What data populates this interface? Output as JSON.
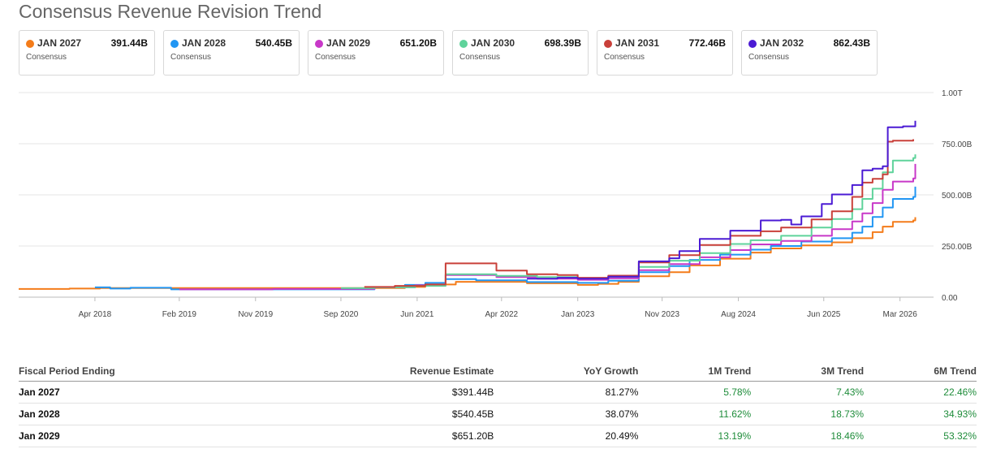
{
  "title": "Consensus Revenue Revision Trend",
  "cards": [
    {
      "name": "JAN 2027",
      "value": "391.44B",
      "sub": "Consensus",
      "color": "#f47c1a"
    },
    {
      "name": "JAN 2028",
      "value": "540.45B",
      "sub": "Consensus",
      "color": "#2196f3"
    },
    {
      "name": "JAN 2029",
      "value": "651.20B",
      "sub": "Consensus",
      "color": "#c838c8"
    },
    {
      "name": "JAN 2030",
      "value": "698.39B",
      "sub": "Consensus",
      "color": "#5fd39b"
    },
    {
      "name": "JAN 2031",
      "value": "772.46B",
      "sub": "Consensus",
      "color": "#c9403a"
    },
    {
      "name": "JAN 2032",
      "value": "862.43B",
      "sub": "Consensus",
      "color": "#4b1bd4"
    }
  ],
  "chart_data": {
    "type": "line",
    "title": "Consensus Revenue Revision Trend",
    "xlabel": "",
    "ylabel": "",
    "x_range": [
      2017.5,
      2026.5
    ],
    "ylim": [
      0,
      1000
    ],
    "y_ticks": [
      {
        "value": 0,
        "label": "0.00"
      },
      {
        "value": 250,
        "label": "250.00B"
      },
      {
        "value": 500,
        "label": "500.00B"
      },
      {
        "value": 750,
        "label": "750.00B"
      },
      {
        "value": 1000,
        "label": "1.00T"
      }
    ],
    "x_ticks": [
      {
        "value": 2018.25,
        "label": "Apr 2018"
      },
      {
        "value": 2019.08,
        "label": "Feb 2019"
      },
      {
        "value": 2019.83,
        "label": "Nov 2019"
      },
      {
        "value": 2020.67,
        "label": "Sep 2020"
      },
      {
        "value": 2021.42,
        "label": "Jun 2021"
      },
      {
        "value": 2022.25,
        "label": "Apr 2022"
      },
      {
        "value": 2023.0,
        "label": "Jan 2023"
      },
      {
        "value": 2023.83,
        "label": "Nov 2023"
      },
      {
        "value": 2024.58,
        "label": "Aug 2024"
      },
      {
        "value": 2025.42,
        "label": "Jun 2025"
      },
      {
        "value": 2026.17,
        "label": "Mar 2026"
      }
    ],
    "grid": true,
    "legend": "top",
    "series": [
      {
        "name": "JAN 2027",
        "color": "#f47c1a",
        "points": [
          [
            2017.5,
            40
          ],
          [
            2018.0,
            42
          ],
          [
            2018.3,
            45
          ],
          [
            2021.3,
            50
          ],
          [
            2021.5,
            62
          ],
          [
            2021.8,
            75
          ],
          [
            2022.5,
            68
          ],
          [
            2023.0,
            60
          ],
          [
            2023.2,
            65
          ],
          [
            2023.4,
            75
          ],
          [
            2023.6,
            102
          ],
          [
            2023.9,
            122
          ],
          [
            2024.1,
            155
          ],
          [
            2024.4,
            188
          ],
          [
            2024.7,
            218
          ],
          [
            2024.9,
            238
          ],
          [
            2025.2,
            253
          ],
          [
            2025.5,
            268
          ],
          [
            2025.7,
            288
          ],
          [
            2025.9,
            318
          ],
          [
            2026.0,
            345
          ],
          [
            2026.1,
            368
          ],
          [
            2026.3,
            375
          ],
          [
            2026.32,
            391
          ]
        ]
      },
      {
        "name": "JAN 2028",
        "color": "#2196f3",
        "points": [
          [
            2018.25,
            48
          ],
          [
            2018.4,
            42
          ],
          [
            2018.6,
            46
          ],
          [
            2019.0,
            38
          ],
          [
            2020.0,
            38
          ],
          [
            2021.0,
            48
          ],
          [
            2021.3,
            60
          ],
          [
            2021.5,
            70
          ],
          [
            2021.7,
            88
          ],
          [
            2022.0,
            82
          ],
          [
            2022.5,
            74
          ],
          [
            2023.0,
            70
          ],
          [
            2023.3,
            80
          ],
          [
            2023.6,
            122
          ],
          [
            2023.9,
            152
          ],
          [
            2024.1,
            182
          ],
          [
            2024.4,
            208
          ],
          [
            2024.7,
            232
          ],
          [
            2024.9,
            250
          ],
          [
            2025.2,
            272
          ],
          [
            2025.5,
            288
          ],
          [
            2025.7,
            315
          ],
          [
            2025.8,
            345
          ],
          [
            2025.9,
            392
          ],
          [
            2026.0,
            438
          ],
          [
            2026.1,
            480
          ],
          [
            2026.3,
            490
          ],
          [
            2026.32,
            540
          ]
        ]
      },
      {
        "name": "JAN 2029",
        "color": "#c838c8",
        "points": [
          [
            2019.08,
            38
          ],
          [
            2020.0,
            40
          ],
          [
            2021.0,
            48
          ],
          [
            2021.4,
            58
          ],
          [
            2021.7,
            108
          ],
          [
            2022.2,
            98
          ],
          [
            2022.6,
            90
          ],
          [
            2023.0,
            85
          ],
          [
            2023.3,
            92
          ],
          [
            2023.6,
            132
          ],
          [
            2023.9,
            162
          ],
          [
            2024.2,
            195
          ],
          [
            2024.5,
            230
          ],
          [
            2024.7,
            258
          ],
          [
            2025.0,
            275
          ],
          [
            2025.3,
            300
          ],
          [
            2025.5,
            332
          ],
          [
            2025.7,
            370
          ],
          [
            2025.8,
            410
          ],
          [
            2025.9,
            460
          ],
          [
            2026.0,
            525
          ],
          [
            2026.1,
            565
          ],
          [
            2026.3,
            580
          ],
          [
            2026.32,
            651
          ]
        ]
      },
      {
        "name": "JAN 2030",
        "color": "#5fd39b",
        "points": [
          [
            2020.67,
            44
          ],
          [
            2021.0,
            48
          ],
          [
            2021.4,
            55
          ],
          [
            2021.7,
            112
          ],
          [
            2022.2,
            104
          ],
          [
            2022.6,
            98
          ],
          [
            2023.0,
            92
          ],
          [
            2023.3,
            100
          ],
          [
            2023.6,
            148
          ],
          [
            2023.9,
            178
          ],
          [
            2024.2,
            215
          ],
          [
            2024.5,
            260
          ],
          [
            2024.7,
            278
          ],
          [
            2025.0,
            300
          ],
          [
            2025.3,
            340
          ],
          [
            2025.5,
            382
          ],
          [
            2025.7,
            430
          ],
          [
            2025.8,
            480
          ],
          [
            2025.9,
            530
          ],
          [
            2026.0,
            610
          ],
          [
            2026.1,
            668
          ],
          [
            2026.3,
            680
          ],
          [
            2026.32,
            698
          ]
        ]
      },
      {
        "name": "JAN 2031",
        "color": "#c9403a",
        "points": [
          [
            2020.9,
            50
          ],
          [
            2021.2,
            55
          ],
          [
            2021.5,
            62
          ],
          [
            2021.7,
            165
          ],
          [
            2022.0,
            165
          ],
          [
            2022.2,
            130
          ],
          [
            2022.5,
            112
          ],
          [
            2022.8,
            108
          ],
          [
            2023.0,
            95
          ],
          [
            2023.3,
            105
          ],
          [
            2023.6,
            170
          ],
          [
            2023.9,
            205
          ],
          [
            2024.2,
            255
          ],
          [
            2024.5,
            300
          ],
          [
            2024.8,
            322
          ],
          [
            2025.0,
            340
          ],
          [
            2025.3,
            380
          ],
          [
            2025.5,
            420
          ],
          [
            2025.7,
            490
          ],
          [
            2025.8,
            560
          ],
          [
            2025.9,
            578
          ],
          [
            2026.0,
            600
          ],
          [
            2026.05,
            760
          ],
          [
            2026.1,
            765
          ],
          [
            2026.3,
            772
          ]
        ]
      },
      {
        "name": "JAN 2032",
        "color": "#4b1bd4",
        "points": [
          [
            2022.5,
            90
          ],
          [
            2022.8,
            95
          ],
          [
            2023.0,
            90
          ],
          [
            2023.3,
            100
          ],
          [
            2023.6,
            175
          ],
          [
            2023.9,
            190
          ],
          [
            2024.0,
            225
          ],
          [
            2024.2,
            285
          ],
          [
            2024.5,
            325
          ],
          [
            2024.8,
            375
          ],
          [
            2025.0,
            378
          ],
          [
            2025.1,
            355
          ],
          [
            2025.2,
            395
          ],
          [
            2025.4,
            455
          ],
          [
            2025.5,
            502
          ],
          [
            2025.7,
            548
          ],
          [
            2025.8,
            620
          ],
          [
            2025.9,
            628
          ],
          [
            2026.0,
            640
          ],
          [
            2026.05,
            830
          ],
          [
            2026.2,
            835
          ],
          [
            2026.32,
            862
          ]
        ]
      }
    ]
  },
  "table": {
    "headers": [
      "Fiscal Period Ending",
      "Revenue Estimate",
      "YoY Growth",
      "1M Trend",
      "3M Trend",
      "6M Trend"
    ],
    "rows": [
      [
        "Jan 2027",
        "$391.44B",
        "81.27%",
        "5.78%",
        "7.43%",
        "22.46%"
      ],
      [
        "Jan 2028",
        "$540.45B",
        "38.07%",
        "11.62%",
        "18.73%",
        "34.93%"
      ],
      [
        "Jan 2029",
        "$651.20B",
        "20.49%",
        "13.19%",
        "18.46%",
        "53.32%"
      ]
    ]
  }
}
